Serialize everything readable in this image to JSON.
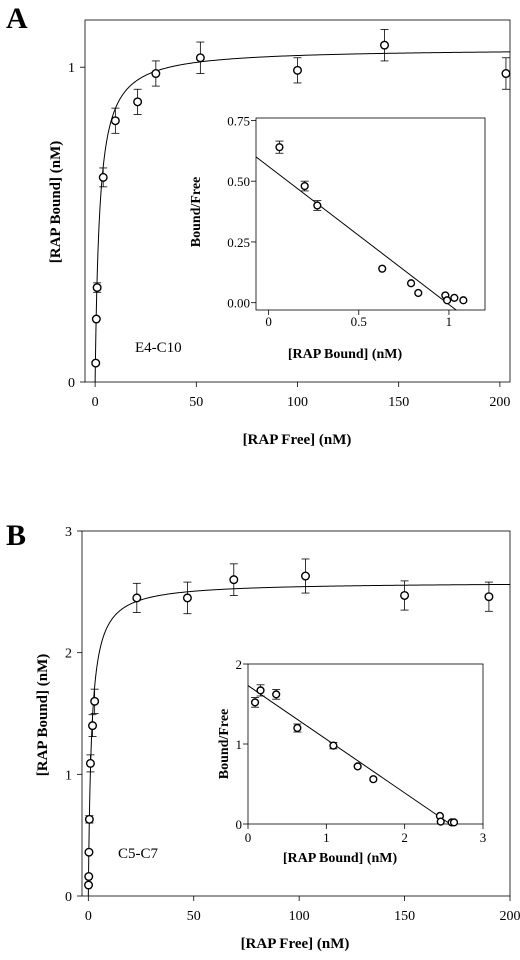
{
  "chart_data": [
    {
      "panel": "A",
      "type": "scatter",
      "annotation": "E4-C10",
      "xlabel": "[RAP Free]  (nM)",
      "ylabel": "[RAP Bound]  (nM)",
      "xlim": [
        -5,
        205
      ],
      "ylim": [
        0,
        1.15
      ],
      "xticks": [
        0,
        50,
        100,
        150,
        200
      ],
      "yticks": [
        0,
        1
      ],
      "fit": {
        "model": "hyperbola",
        "bmax": 1.06,
        "kd": 2.2
      },
      "points": [
        {
          "x": 0.3,
          "y": 0.06,
          "err": 0
        },
        {
          "x": 0.6,
          "y": 0.2,
          "err": 0
        },
        {
          "x": 1.0,
          "y": 0.3,
          "err": 0.015
        },
        {
          "x": 4,
          "y": 0.65,
          "err": 0.03
        },
        {
          "x": 10,
          "y": 0.83,
          "err": 0.04
        },
        {
          "x": 21,
          "y": 0.89,
          "err": 0.04
        },
        {
          "x": 30,
          "y": 0.98,
          "err": 0.04
        },
        {
          "x": 52,
          "y": 1.03,
          "err": 0.05
        },
        {
          "x": 100,
          "y": 0.99,
          "err": 0.04
        },
        {
          "x": 143,
          "y": 1.07,
          "err": 0.05
        },
        {
          "x": 203,
          "y": 0.98,
          "err": 0.05
        }
      ],
      "inset": {
        "xlabel": "[RAP Bound]  (nM)",
        "ylabel": "Bound/Free",
        "xlim": [
          -0.07,
          1.2
        ],
        "ylim": [
          -0.03,
          0.76
        ],
        "xticks": [
          0,
          0.5,
          1
        ],
        "xtick_labels": [
          "0",
          "0.5",
          "1"
        ],
        "yticks": [
          0,
          0.25,
          0.5,
          0.75
        ],
        "ytick_labels": [
          "0.00",
          "0.25",
          "0.50",
          "0.75"
        ],
        "line": [
          [
            -0.07,
            0.6
          ],
          [
            1.04,
            -0.03
          ]
        ],
        "points": [
          {
            "x": 0.06,
            "y": 0.64,
            "err": 0.025
          },
          {
            "x": 0.2,
            "y": 0.48,
            "err": 0.02
          },
          {
            "x": 0.27,
            "y": 0.4,
            "err": 0.02
          },
          {
            "x": 0.63,
            "y": 0.14,
            "err": 0
          },
          {
            "x": 0.79,
            "y": 0.08,
            "err": 0
          },
          {
            "x": 0.83,
            "y": 0.04,
            "err": 0
          },
          {
            "x": 0.98,
            "y": 0.03,
            "err": 0
          },
          {
            "x": 0.99,
            "y": 0.01,
            "err": 0
          },
          {
            "x": 1.03,
            "y": 0.02,
            "err": 0
          },
          {
            "x": 1.08,
            "y": 0.01,
            "err": 0
          }
        ]
      }
    },
    {
      "panel": "B",
      "type": "scatter",
      "annotation": "C5-C7",
      "xlabel": "[RAP Free]  (nM)",
      "ylabel": "[RAP Bound]  (nM)",
      "xlim": [
        -3,
        200
      ],
      "ylim": [
        0,
        3
      ],
      "xticks": [
        0,
        50,
        100,
        150,
        200
      ],
      "yticks": [
        0,
        1,
        2,
        3
      ],
      "fit": {
        "model": "hyperbola",
        "bmax": 2.58,
        "kd": 1.5
      },
      "points": [
        {
          "x": 0.1,
          "y": 0.09,
          "err": 0
        },
        {
          "x": 0.2,
          "y": 0.16,
          "err": 0
        },
        {
          "x": 0.3,
          "y": 0.36,
          "err": 0
        },
        {
          "x": 0.5,
          "y": 0.63,
          "err": 0.03
        },
        {
          "x": 1.0,
          "y": 1.09,
          "err": 0.07
        },
        {
          "x": 2.0,
          "y": 1.4,
          "err": 0.09
        },
        {
          "x": 3.0,
          "y": 1.6,
          "err": 0.1
        },
        {
          "x": 23,
          "y": 2.45,
          "err": 0.12
        },
        {
          "x": 47,
          "y": 2.45,
          "err": 0.13
        },
        {
          "x": 69,
          "y": 2.6,
          "err": 0.13
        },
        {
          "x": 103,
          "y": 2.63,
          "err": 0.14
        },
        {
          "x": 150,
          "y": 2.47,
          "err": 0.12
        },
        {
          "x": 190,
          "y": 2.46,
          "err": 0.12
        }
      ],
      "inset": {
        "xlabel": "[RAP Bound]  (nM)",
        "ylabel": "Bound/Free",
        "xlim": [
          0,
          3
        ],
        "ylim": [
          0,
          2
        ],
        "xticks": [
          0,
          1,
          2,
          3
        ],
        "xtick_labels": [
          "0",
          "1",
          "2",
          "3"
        ],
        "yticks": [
          0,
          1,
          2
        ],
        "ytick_labels": [
          "0",
          "1",
          "2"
        ],
        "line": [
          [
            0,
            1.73
          ],
          [
            2.58,
            0
          ]
        ],
        "points": [
          {
            "x": 0.09,
            "y": 1.52,
            "err": 0.06
          },
          {
            "x": 0.16,
            "y": 1.67,
            "err": 0.07
          },
          {
            "x": 0.36,
            "y": 1.62,
            "err": 0.06
          },
          {
            "x": 0.63,
            "y": 1.2,
            "err": 0.05
          },
          {
            "x": 1.09,
            "y": 0.98,
            "err": 0.04
          },
          {
            "x": 1.4,
            "y": 0.72,
            "err": 0
          },
          {
            "x": 1.6,
            "y": 0.56,
            "err": 0
          },
          {
            "x": 2.45,
            "y": 0.1,
            "err": 0
          },
          {
            "x": 2.46,
            "y": 0.03,
            "err": 0
          },
          {
            "x": 2.6,
            "y": 0.02,
            "err": 0
          },
          {
            "x": 2.63,
            "y": 0.02,
            "err": 0
          }
        ]
      }
    }
  ]
}
